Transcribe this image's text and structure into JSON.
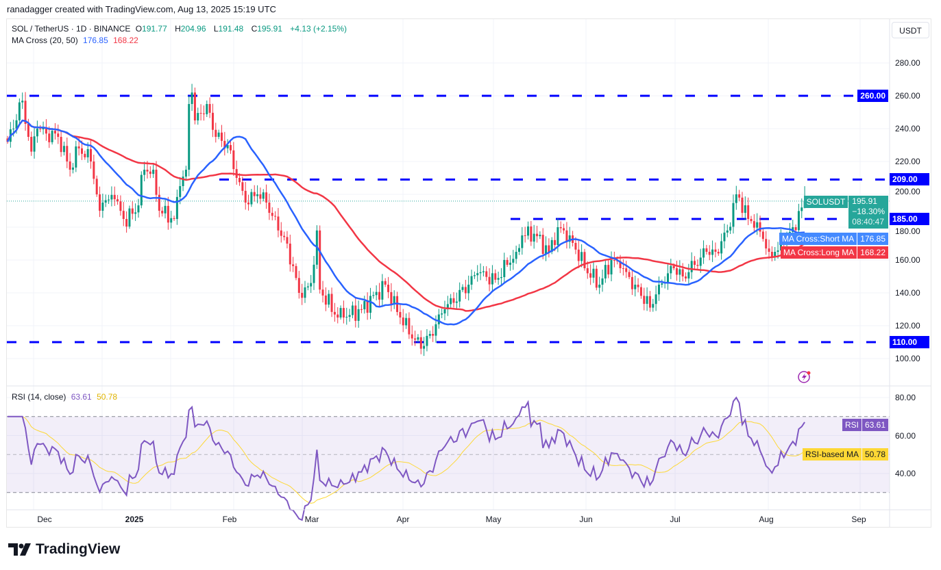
{
  "caption": "ranadagger created with TradingView.com, Aug 13, 2025 15:19 UTC",
  "legend": {
    "symbol": "SOL / TetherUS · 1D · BINANCE",
    "o_label": "O",
    "o": "191.77",
    "h_label": "H",
    "h": "204.96",
    "l_label": "L",
    "l": "191.48",
    "c_label": "C",
    "c": "195.91",
    "change": "+4.13 (+2.15%)",
    "ma_title": "MA Cross (20, 50)",
    "ma_short": "176.85",
    "ma_long": "168.22",
    "rsi_title": "RSI (14, close)",
    "rsi": "63.61",
    "rsi_ma": "50.78"
  },
  "currency_button": "USDT",
  "price_ticks": [
    "280.00",
    "260.00",
    "240.00",
    "220.00",
    "200.00",
    "180.00",
    "160.00",
    "140.00",
    "120.00",
    "100.00"
  ],
  "rsi_ticks": [
    "80.00",
    "60.00",
    "40.00"
  ],
  "time_ticks": [
    "Dec",
    "2025",
    "Feb",
    "Mar",
    "Apr",
    "May",
    "Jun",
    "Jul",
    "Aug",
    "Sep"
  ],
  "levels": [
    {
      "value": 260,
      "label": "260.00"
    },
    {
      "value": 209,
      "label": "209.00"
    },
    {
      "value": 185,
      "label": "185.00"
    },
    {
      "value": 110,
      "label": "110.00"
    }
  ],
  "last_price": {
    "symbol": "SOLUSDT",
    "price": "195.91",
    "change": "−18.30%",
    "countdown": "08:40:47"
  },
  "ma_labels": {
    "short_name": "MA Cross:Short MA",
    "short_value": "176.85",
    "long_name": "MA Cross:Long MA",
    "long_value": "168.22"
  },
  "rsi_labels": {
    "rsi_name": "RSI",
    "rsi_value": "63.61",
    "ma_name": "RSI-based MA",
    "ma_value": "50.78"
  },
  "logo": "TradingView",
  "colors": {
    "up": "#089981",
    "down": "#f23645",
    "ma_short": "#2962ff",
    "ma_long": "#f23645",
    "level": "#0000ff",
    "rsi": "#7e57c2",
    "rsi_ma": "#fdd835"
  },
  "chart_data": {
    "type": "candlestick",
    "symbol": "SOL / TetherUS",
    "interval": "1D",
    "ylim": [
      88,
      298
    ],
    "rsi_ylim": [
      20,
      86
    ],
    "rsi_bands": [
      70,
      50,
      30
    ],
    "last_candle": {
      "date": "2025-08-13",
      "open": 191.77,
      "high": 204.96,
      "low": 191.48,
      "close": 195.91
    },
    "close_points": [
      [
        "2024-11-18",
        232
      ],
      [
        "2024-11-20",
        240
      ],
      [
        "2024-11-22",
        256
      ],
      [
        "2024-11-23",
        257
      ],
      [
        "2024-11-25",
        235
      ],
      [
        "2024-11-26",
        226
      ],
      [
        "2024-11-28",
        240
      ],
      [
        "2024-12-01",
        237
      ],
      [
        "2024-12-05",
        235
      ],
      [
        "2024-12-09",
        215
      ],
      [
        "2024-12-12",
        228
      ],
      [
        "2024-12-16",
        220
      ],
      [
        "2024-12-19",
        190
      ],
      [
        "2024-12-20",
        195
      ],
      [
        "2024-12-24",
        197
      ],
      [
        "2024-12-27",
        185
      ],
      [
        "2024-12-31",
        189
      ],
      [
        "2025-01-03",
        215
      ],
      [
        "2025-01-06",
        215
      ],
      [
        "2025-01-08",
        190
      ],
      [
        "2025-01-13",
        185
      ],
      [
        "2025-01-15",
        205
      ],
      [
        "2025-01-17",
        215
      ],
      [
        "2025-01-18",
        255
      ],
      [
        "2025-01-19",
        262
      ],
      [
        "2025-01-20",
        245
      ],
      [
        "2025-01-24",
        255
      ],
      [
        "2025-01-27",
        235
      ],
      [
        "2025-01-31",
        230
      ],
      [
        "2025-02-03",
        210
      ],
      [
        "2025-02-06",
        195
      ],
      [
        "2025-02-10",
        200
      ],
      [
        "2025-02-13",
        195
      ],
      [
        "2025-02-17",
        178
      ],
      [
        "2025-02-20",
        170
      ],
      [
        "2025-02-24",
        140
      ],
      [
        "2025-02-25",
        137
      ],
      [
        "2025-02-28",
        146
      ],
      [
        "2025-03-02",
        178
      ],
      [
        "2025-03-03",
        142
      ],
      [
        "2025-03-09",
        125
      ],
      [
        "2025-03-11",
        125
      ],
      [
        "2025-03-17",
        130
      ],
      [
        "2025-03-25",
        145
      ],
      [
        "2025-03-30",
        125
      ],
      [
        "2025-04-06",
        106
      ],
      [
        "2025-04-09",
        115
      ],
      [
        "2025-04-14",
        130
      ],
      [
        "2025-04-22",
        145
      ],
      [
        "2025-04-25",
        152
      ],
      [
        "2025-05-01",
        148
      ],
      [
        "2025-05-08",
        165
      ],
      [
        "2025-05-10",
        175
      ],
      [
        "2025-05-14",
        176
      ],
      [
        "2025-05-19",
        165
      ],
      [
        "2025-05-22",
        180
      ],
      [
        "2025-05-26",
        175
      ],
      [
        "2025-05-31",
        155
      ],
      [
        "2025-06-05",
        145
      ],
      [
        "2025-06-09",
        160
      ],
      [
        "2025-06-12",
        155
      ],
      [
        "2025-06-17",
        145
      ],
      [
        "2025-06-22",
        131
      ],
      [
        "2025-06-25",
        145
      ],
      [
        "2025-06-30",
        155
      ],
      [
        "2025-07-03",
        150
      ],
      [
        "2025-07-11",
        165
      ],
      [
        "2025-07-14",
        165
      ],
      [
        "2025-07-18",
        178
      ],
      [
        "2025-07-21",
        200
      ],
      [
        "2025-07-22",
        198
      ],
      [
        "2025-07-25",
        185
      ],
      [
        "2025-07-28",
        183
      ],
      [
        "2025-08-01",
        165
      ],
      [
        "2025-08-03",
        165
      ],
      [
        "2025-08-06",
        170
      ],
      [
        "2025-08-09",
        180
      ],
      [
        "2025-08-12",
        192
      ],
      [
        "2025-08-13",
        195.91
      ]
    ],
    "ma_periods": [
      20,
      50
    ],
    "rsi_period": 14
  }
}
